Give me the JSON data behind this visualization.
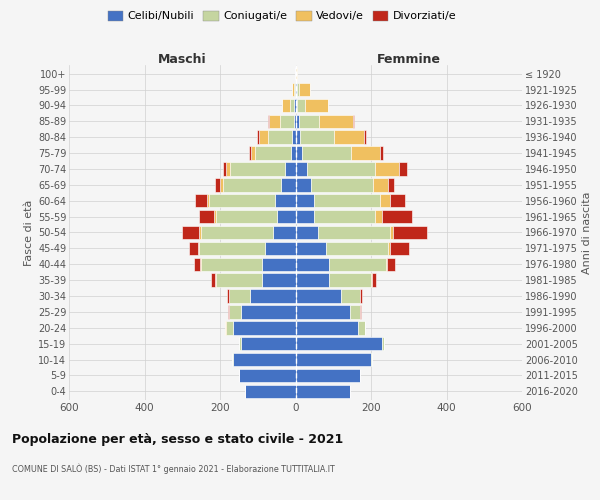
{
  "age_groups": [
    "0-4",
    "5-9",
    "10-14",
    "15-19",
    "20-24",
    "25-29",
    "30-34",
    "35-39",
    "40-44",
    "45-49",
    "50-54",
    "55-59",
    "60-64",
    "65-69",
    "70-74",
    "75-79",
    "80-84",
    "85-89",
    "90-94",
    "95-99",
    "100+"
  ],
  "birth_years": [
    "2016-2020",
    "2011-2015",
    "2006-2010",
    "2001-2005",
    "1996-2000",
    "1991-1995",
    "1986-1990",
    "1981-1985",
    "1976-1980",
    "1971-1975",
    "1966-1970",
    "1961-1965",
    "1956-1960",
    "1951-1955",
    "1946-1950",
    "1941-1945",
    "1936-1940",
    "1931-1935",
    "1926-1930",
    "1921-1925",
    "≤ 1920"
  ],
  "colors": {
    "celibi": "#4472c4",
    "coniugati": "#c5d5a0",
    "vedovi": "#f0c060",
    "divorziati": "#c0271a"
  },
  "maschi": {
    "celibi": [
      135,
      150,
      165,
      145,
      165,
      145,
      120,
      90,
      90,
      80,
      60,
      50,
      55,
      38,
      28,
      12,
      8,
      5,
      3,
      2,
      2
    ],
    "coniugati": [
      0,
      0,
      2,
      5,
      20,
      30,
      55,
      120,
      160,
      175,
      190,
      160,
      175,
      155,
      145,
      95,
      65,
      35,
      12,
      2,
      0
    ],
    "vedovi": [
      0,
      0,
      0,
      0,
      2,
      2,
      2,
      2,
      2,
      2,
      5,
      5,
      5,
      8,
      12,
      12,
      25,
      30,
      20,
      5,
      0
    ],
    "divorziati": [
      0,
      0,
      0,
      0,
      0,
      2,
      5,
      12,
      18,
      25,
      45,
      40,
      30,
      12,
      8,
      5,
      3,
      2,
      0,
      0,
      0
    ]
  },
  "femmine": {
    "celibi": [
      145,
      170,
      200,
      230,
      165,
      145,
      120,
      90,
      90,
      80,
      60,
      50,
      50,
      40,
      30,
      18,
      12,
      8,
      5,
      3,
      2
    ],
    "coniugati": [
      0,
      0,
      2,
      5,
      18,
      25,
      50,
      110,
      150,
      165,
      190,
      160,
      175,
      165,
      180,
      130,
      90,
      55,
      20,
      5,
      0
    ],
    "vedovi": [
      0,
      0,
      0,
      0,
      0,
      2,
      2,
      3,
      3,
      5,
      8,
      18,
      25,
      40,
      65,
      75,
      80,
      90,
      60,
      30,
      2
    ],
    "divorziati": [
      0,
      0,
      0,
      0,
      2,
      2,
      5,
      10,
      20,
      50,
      90,
      80,
      40,
      15,
      20,
      10,
      5,
      3,
      2,
      0,
      0
    ]
  },
  "legend_labels": [
    "Celibi/Nubili",
    "Coniugati/e",
    "Vedovi/e",
    "Divorziati/e"
  ],
  "title": "Popolazione per età, sesso e stato civile - 2021",
  "subtitle": "COMUNE DI SALÒ (BS) - Dati ISTAT 1° gennaio 2021 - Elaborazione TUTTITALIA.IT",
  "xlim": 600,
  "ylabel_left": "Fasce di età",
  "ylabel_right": "Anni di nascita",
  "label_maschi": "Maschi",
  "label_femmine": "Femmine",
  "bg_color": "#f5f5f5",
  "grid_color": "#d0d0d0"
}
